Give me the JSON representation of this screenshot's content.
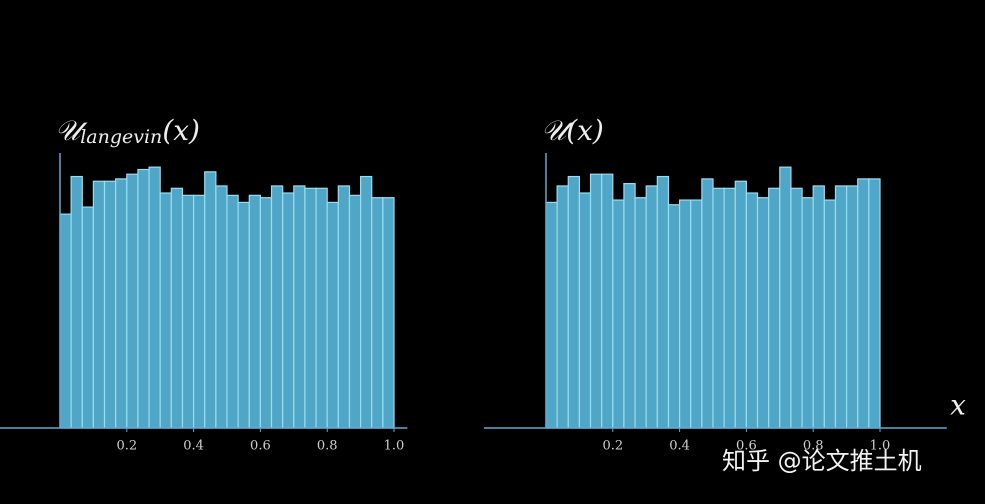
{
  "chart_data": [
    {
      "type": "histogram",
      "title": {
        "symbol": "𝒰",
        "subscript": "langevin",
        "argument": "(x)"
      },
      "bins": [
        0,
        0.0333,
        0.0667,
        0.1,
        0.1333,
        0.1667,
        0.2,
        0.2333,
        0.2667,
        0.3,
        0.3333,
        0.3667,
        0.4,
        0.4333,
        0.4667,
        0.5,
        0.5333,
        0.5667,
        0.6,
        0.6333,
        0.6667,
        0.7,
        0.7333,
        0.7667,
        0.8,
        0.8333,
        0.8667,
        0.9,
        0.9333,
        0.9667,
        1
      ],
      "values": [
        0.91,
        1.07,
        0.94,
        1.05,
        1.05,
        1.06,
        1.08,
        1.1,
        1.11,
        1.0,
        1.02,
        0.99,
        0.99,
        1.09,
        1.03,
        0.99,
        0.96,
        0.99,
        0.98,
        1.03,
        1.0,
        1.03,
        1.02,
        1.02,
        0.96,
        1.03,
        0.99,
        1.07,
        0.98,
        0.98
      ],
      "color": "#4fa6c6",
      "xlim": [
        -0.18,
        1.04
      ],
      "ylim": [
        0,
        1.17
      ],
      "xticks": [
        0.2,
        0.4,
        0.6,
        0.8,
        {
          "value": 1,
          "label": "1.0"
        }
      ]
    },
    {
      "type": "histogram",
      "title": {
        "symbol": "𝒰",
        "argument": "(x)"
      },
      "xlabel": "x",
      "bins": [
        0,
        0.0333,
        0.0667,
        0.1,
        0.1333,
        0.1667,
        0.2,
        0.2333,
        0.2667,
        0.3,
        0.3333,
        0.3667,
        0.4,
        0.4333,
        0.4667,
        0.5,
        0.5333,
        0.5667,
        0.6,
        0.6333,
        0.6667,
        0.7,
        0.7333,
        0.7667,
        0.8,
        0.8333,
        0.8667,
        0.9,
        0.9333,
        0.9667,
        1
      ],
      "values": [
        0.96,
        1.03,
        1.07,
        1.0,
        1.08,
        1.08,
        0.97,
        1.04,
        0.98,
        1.03,
        1.07,
        0.95,
        0.97,
        0.97,
        1.06,
        1.02,
        1.02,
        1.05,
        1.0,
        0.98,
        1.02,
        1.11,
        1.02,
        0.98,
        1.03,
        0.97,
        1.03,
        1.03,
        1.06,
        1.06
      ],
      "color": "#4fa6c6",
      "xlim": [
        -0.186,
        1.2
      ],
      "ylim": [
        0,
        1.17
      ],
      "xticks": [
        0.2,
        0.4,
        0.6,
        0.8,
        {
          "value": 1,
          "label": "1.0"
        }
      ]
    }
  ],
  "watermark": "知乎 @论文推土机"
}
